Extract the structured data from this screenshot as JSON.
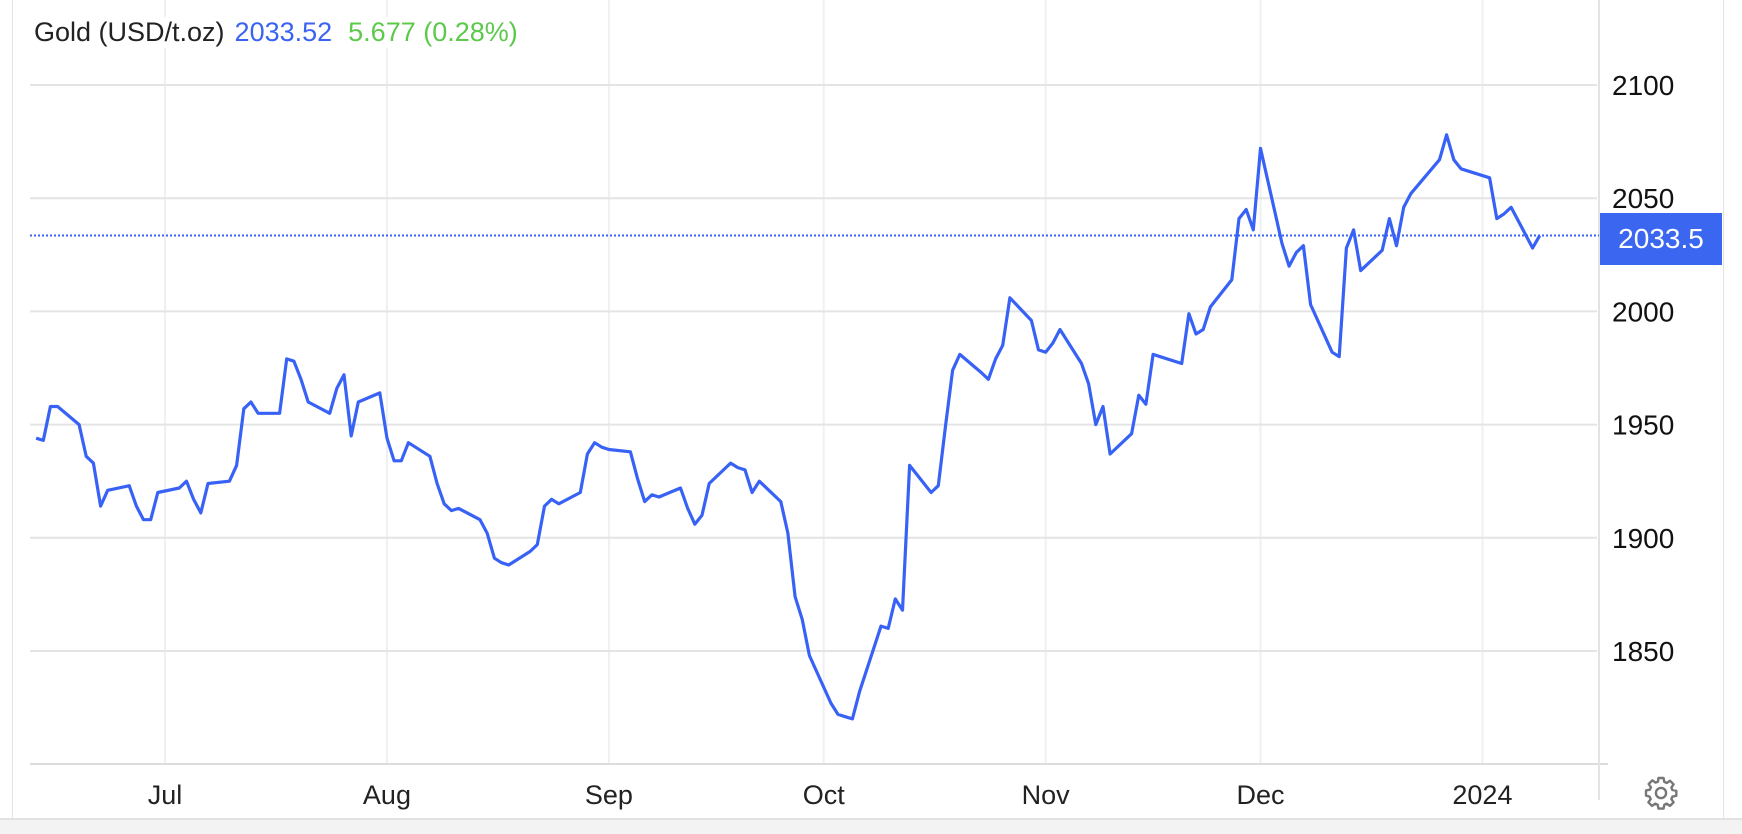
{
  "header": {
    "instrument": "Gold (USD/t.oz)",
    "price": "2033.52",
    "change": "5.677 (0.28%)"
  },
  "price_tag": "2033.5",
  "settings_icon": "gear-icon",
  "colors": {
    "line": "#3862f5",
    "price": "#3a63f0",
    "change": "#5cc94a",
    "price_box": "#3a66f0"
  },
  "chart_data": {
    "type": "line",
    "title": "Gold (USD/t.oz)",
    "xlabel": "",
    "ylabel": "",
    "ylim": [
      1800,
      2100
    ],
    "yticks": [
      "1850",
      "1900",
      "1950",
      "2000",
      "2050",
      "2100"
    ],
    "xticks": [
      {
        "label": "Jul",
        "date": "2023-07-01"
      },
      {
        "label": "Aug",
        "date": "2023-08-01"
      },
      {
        "label": "Sep",
        "date": "2023-09-01"
      },
      {
        "label": "Oct",
        "date": "2023-10-01"
      },
      {
        "label": "Nov",
        "date": "2023-11-01"
      },
      {
        "label": "Dec",
        "date": "2023-12-01"
      },
      {
        "label": "2024",
        "date": "2024-01-01"
      }
    ],
    "y_axis_position": "right",
    "grid": true,
    "current_value_line": 2033.5,
    "series": [
      {
        "points": [
          [
            "2023-06-13",
            1944
          ],
          [
            "2023-06-14",
            1943
          ],
          [
            "2023-06-15",
            1958
          ],
          [
            "2023-06-16",
            1958
          ],
          [
            "2023-06-19",
            1950
          ],
          [
            "2023-06-20",
            1936
          ],
          [
            "2023-06-21",
            1933
          ],
          [
            "2023-06-22",
            1914
          ],
          [
            "2023-06-23",
            1921
          ],
          [
            "2023-06-26",
            1923
          ],
          [
            "2023-06-27",
            1914
          ],
          [
            "2023-06-28",
            1908
          ],
          [
            "2023-06-29",
            1908
          ],
          [
            "2023-06-30",
            1920
          ],
          [
            "2023-07-03",
            1922
          ],
          [
            "2023-07-04",
            1925
          ],
          [
            "2023-07-05",
            1917
          ],
          [
            "2023-07-06",
            1911
          ],
          [
            "2023-07-07",
            1924
          ],
          [
            "2023-07-10",
            1925
          ],
          [
            "2023-07-11",
            1932
          ],
          [
            "2023-07-12",
            1957
          ],
          [
            "2023-07-13",
            1960
          ],
          [
            "2023-07-14",
            1955
          ],
          [
            "2023-07-17",
            1955
          ],
          [
            "2023-07-18",
            1979
          ],
          [
            "2023-07-19",
            1978
          ],
          [
            "2023-07-20",
            1970
          ],
          [
            "2023-07-21",
            1960
          ],
          [
            "2023-07-24",
            1955
          ],
          [
            "2023-07-25",
            1966
          ],
          [
            "2023-07-26",
            1972
          ],
          [
            "2023-07-27",
            1945
          ],
          [
            "2023-07-28",
            1960
          ],
          [
            "2023-07-31",
            1964
          ],
          [
            "2023-08-01",
            1944
          ],
          [
            "2023-08-02",
            1934
          ],
          [
            "2023-08-03",
            1934
          ],
          [
            "2023-08-04",
            1942
          ],
          [
            "2023-08-07",
            1936
          ],
          [
            "2023-08-08",
            1924
          ],
          [
            "2023-08-09",
            1915
          ],
          [
            "2023-08-10",
            1912
          ],
          [
            "2023-08-11",
            1913
          ],
          [
            "2023-08-14",
            1908
          ],
          [
            "2023-08-15",
            1902
          ],
          [
            "2023-08-16",
            1891
          ],
          [
            "2023-08-17",
            1889
          ],
          [
            "2023-08-18",
            1888
          ],
          [
            "2023-08-21",
            1894
          ],
          [
            "2023-08-22",
            1897
          ],
          [
            "2023-08-23",
            1914
          ],
          [
            "2023-08-24",
            1917
          ],
          [
            "2023-08-25",
            1915
          ],
          [
            "2023-08-28",
            1920
          ],
          [
            "2023-08-29",
            1937
          ],
          [
            "2023-08-30",
            1942
          ],
          [
            "2023-08-31",
            1940
          ],
          [
            "2023-09-01",
            1939
          ],
          [
            "2023-09-04",
            1938
          ],
          [
            "2023-09-05",
            1926
          ],
          [
            "2023-09-06",
            1916
          ],
          [
            "2023-09-07",
            1919
          ],
          [
            "2023-09-08",
            1918
          ],
          [
            "2023-09-11",
            1922
          ],
          [
            "2023-09-12",
            1913
          ],
          [
            "2023-09-13",
            1906
          ],
          [
            "2023-09-14",
            1910
          ],
          [
            "2023-09-15",
            1924
          ],
          [
            "2023-09-18",
            1933
          ],
          [
            "2023-09-19",
            1931
          ],
          [
            "2023-09-20",
            1930
          ],
          [
            "2023-09-21",
            1920
          ],
          [
            "2023-09-22",
            1925
          ],
          [
            "2023-09-25",
            1916
          ],
          [
            "2023-09-26",
            1902
          ],
          [
            "2023-09-27",
            1874
          ],
          [
            "2023-09-28",
            1864
          ],
          [
            "2023-09-29",
            1848
          ],
          [
            "2023-10-02",
            1827
          ],
          [
            "2023-10-03",
            1822
          ],
          [
            "2023-10-04",
            1821
          ],
          [
            "2023-10-05",
            1820
          ],
          [
            "2023-10-06",
            1832
          ],
          [
            "2023-10-09",
            1861
          ],
          [
            "2023-10-10",
            1860
          ],
          [
            "2023-10-11",
            1873
          ],
          [
            "2023-10-12",
            1868
          ],
          [
            "2023-10-13",
            1932
          ],
          [
            "2023-10-16",
            1920
          ],
          [
            "2023-10-17",
            1923
          ],
          [
            "2023-10-18",
            1949
          ],
          [
            "2023-10-19",
            1974
          ],
          [
            "2023-10-20",
            1981
          ],
          [
            "2023-10-23",
            1973
          ],
          [
            "2023-10-24",
            1970
          ],
          [
            "2023-10-25",
            1979
          ],
          [
            "2023-10-26",
            1985
          ],
          [
            "2023-10-27",
            2006
          ],
          [
            "2023-10-30",
            1996
          ],
          [
            "2023-10-31",
            1983
          ],
          [
            "2023-11-01",
            1982
          ],
          [
            "2023-11-02",
            1986
          ],
          [
            "2023-11-03",
            1992
          ],
          [
            "2023-11-06",
            1977
          ],
          [
            "2023-11-07",
            1968
          ],
          [
            "2023-11-08",
            1950
          ],
          [
            "2023-11-09",
            1958
          ],
          [
            "2023-11-10",
            1937
          ],
          [
            "2023-11-13",
            1946
          ],
          [
            "2023-11-14",
            1963
          ],
          [
            "2023-11-15",
            1959
          ],
          [
            "2023-11-16",
            1981
          ],
          [
            "2023-11-17",
            1980
          ],
          [
            "2023-11-20",
            1977
          ],
          [
            "2023-11-21",
            1999
          ],
          [
            "2023-11-22",
            1990
          ],
          [
            "2023-11-23",
            1992
          ],
          [
            "2023-11-24",
            2002
          ],
          [
            "2023-11-27",
            2014
          ],
          [
            "2023-11-28",
            2041
          ],
          [
            "2023-11-29",
            2045
          ],
          [
            "2023-11-30",
            2036
          ],
          [
            "2023-12-01",
            2072
          ],
          [
            "2023-12-04",
            2030
          ],
          [
            "2023-12-05",
            2020
          ],
          [
            "2023-12-06",
            2026
          ],
          [
            "2023-12-07",
            2029
          ],
          [
            "2023-12-08",
            2003
          ],
          [
            "2023-12-11",
            1982
          ],
          [
            "2023-12-12",
            1980
          ],
          [
            "2023-12-13",
            2028
          ],
          [
            "2023-12-14",
            2036
          ],
          [
            "2023-12-15",
            2018
          ],
          [
            "2023-12-18",
            2027
          ],
          [
            "2023-12-19",
            2041
          ],
          [
            "2023-12-20",
            2029
          ],
          [
            "2023-12-21",
            2046
          ],
          [
            "2023-12-22",
            2052
          ],
          [
            "2023-12-26",
            2067
          ],
          [
            "2023-12-27",
            2078
          ],
          [
            "2023-12-28",
            2067
          ],
          [
            "2023-12-29",
            2063
          ],
          [
            "2024-01-02",
            2059
          ],
          [
            "2024-01-03",
            2041
          ],
          [
            "2024-01-04",
            2043
          ],
          [
            "2024-01-05",
            2046
          ],
          [
            "2024-01-08",
            2028
          ],
          [
            "2024-01-09",
            2033.5
          ]
        ]
      }
    ]
  }
}
